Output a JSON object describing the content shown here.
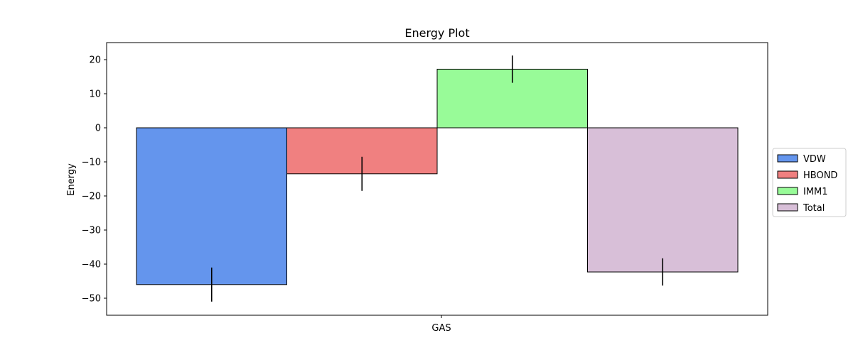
{
  "chart_data": {
    "type": "bar",
    "title": "Energy Plot",
    "xlabel": "",
    "ylabel": "Energy",
    "categories": [
      "GAS"
    ],
    "ylim": [
      -55,
      25
    ],
    "yticks": [
      20,
      10,
      0,
      -10,
      -20,
      -30,
      -40,
      -50
    ],
    "ytick_labels": [
      "20",
      "10",
      "0",
      "−10",
      "−20",
      "−30",
      "−40",
      "−50"
    ],
    "grid": false,
    "legend_position": "right-center",
    "series": [
      {
        "name": "VDW",
        "values": [
          -46.0
        ],
        "error": [
          5.0
        ],
        "color": "#6495ED"
      },
      {
        "name": "HBOND",
        "values": [
          -13.5
        ],
        "error": [
          5.0
        ],
        "color": "#F08080"
      },
      {
        "name": "IMM1",
        "values": [
          17.2
        ],
        "error": [
          4.0
        ],
        "color": "#98FB98"
      },
      {
        "name": "Total",
        "values": [
          -42.3
        ],
        "error": [
          4.0
        ],
        "color": "#D8BFD8"
      }
    ]
  }
}
